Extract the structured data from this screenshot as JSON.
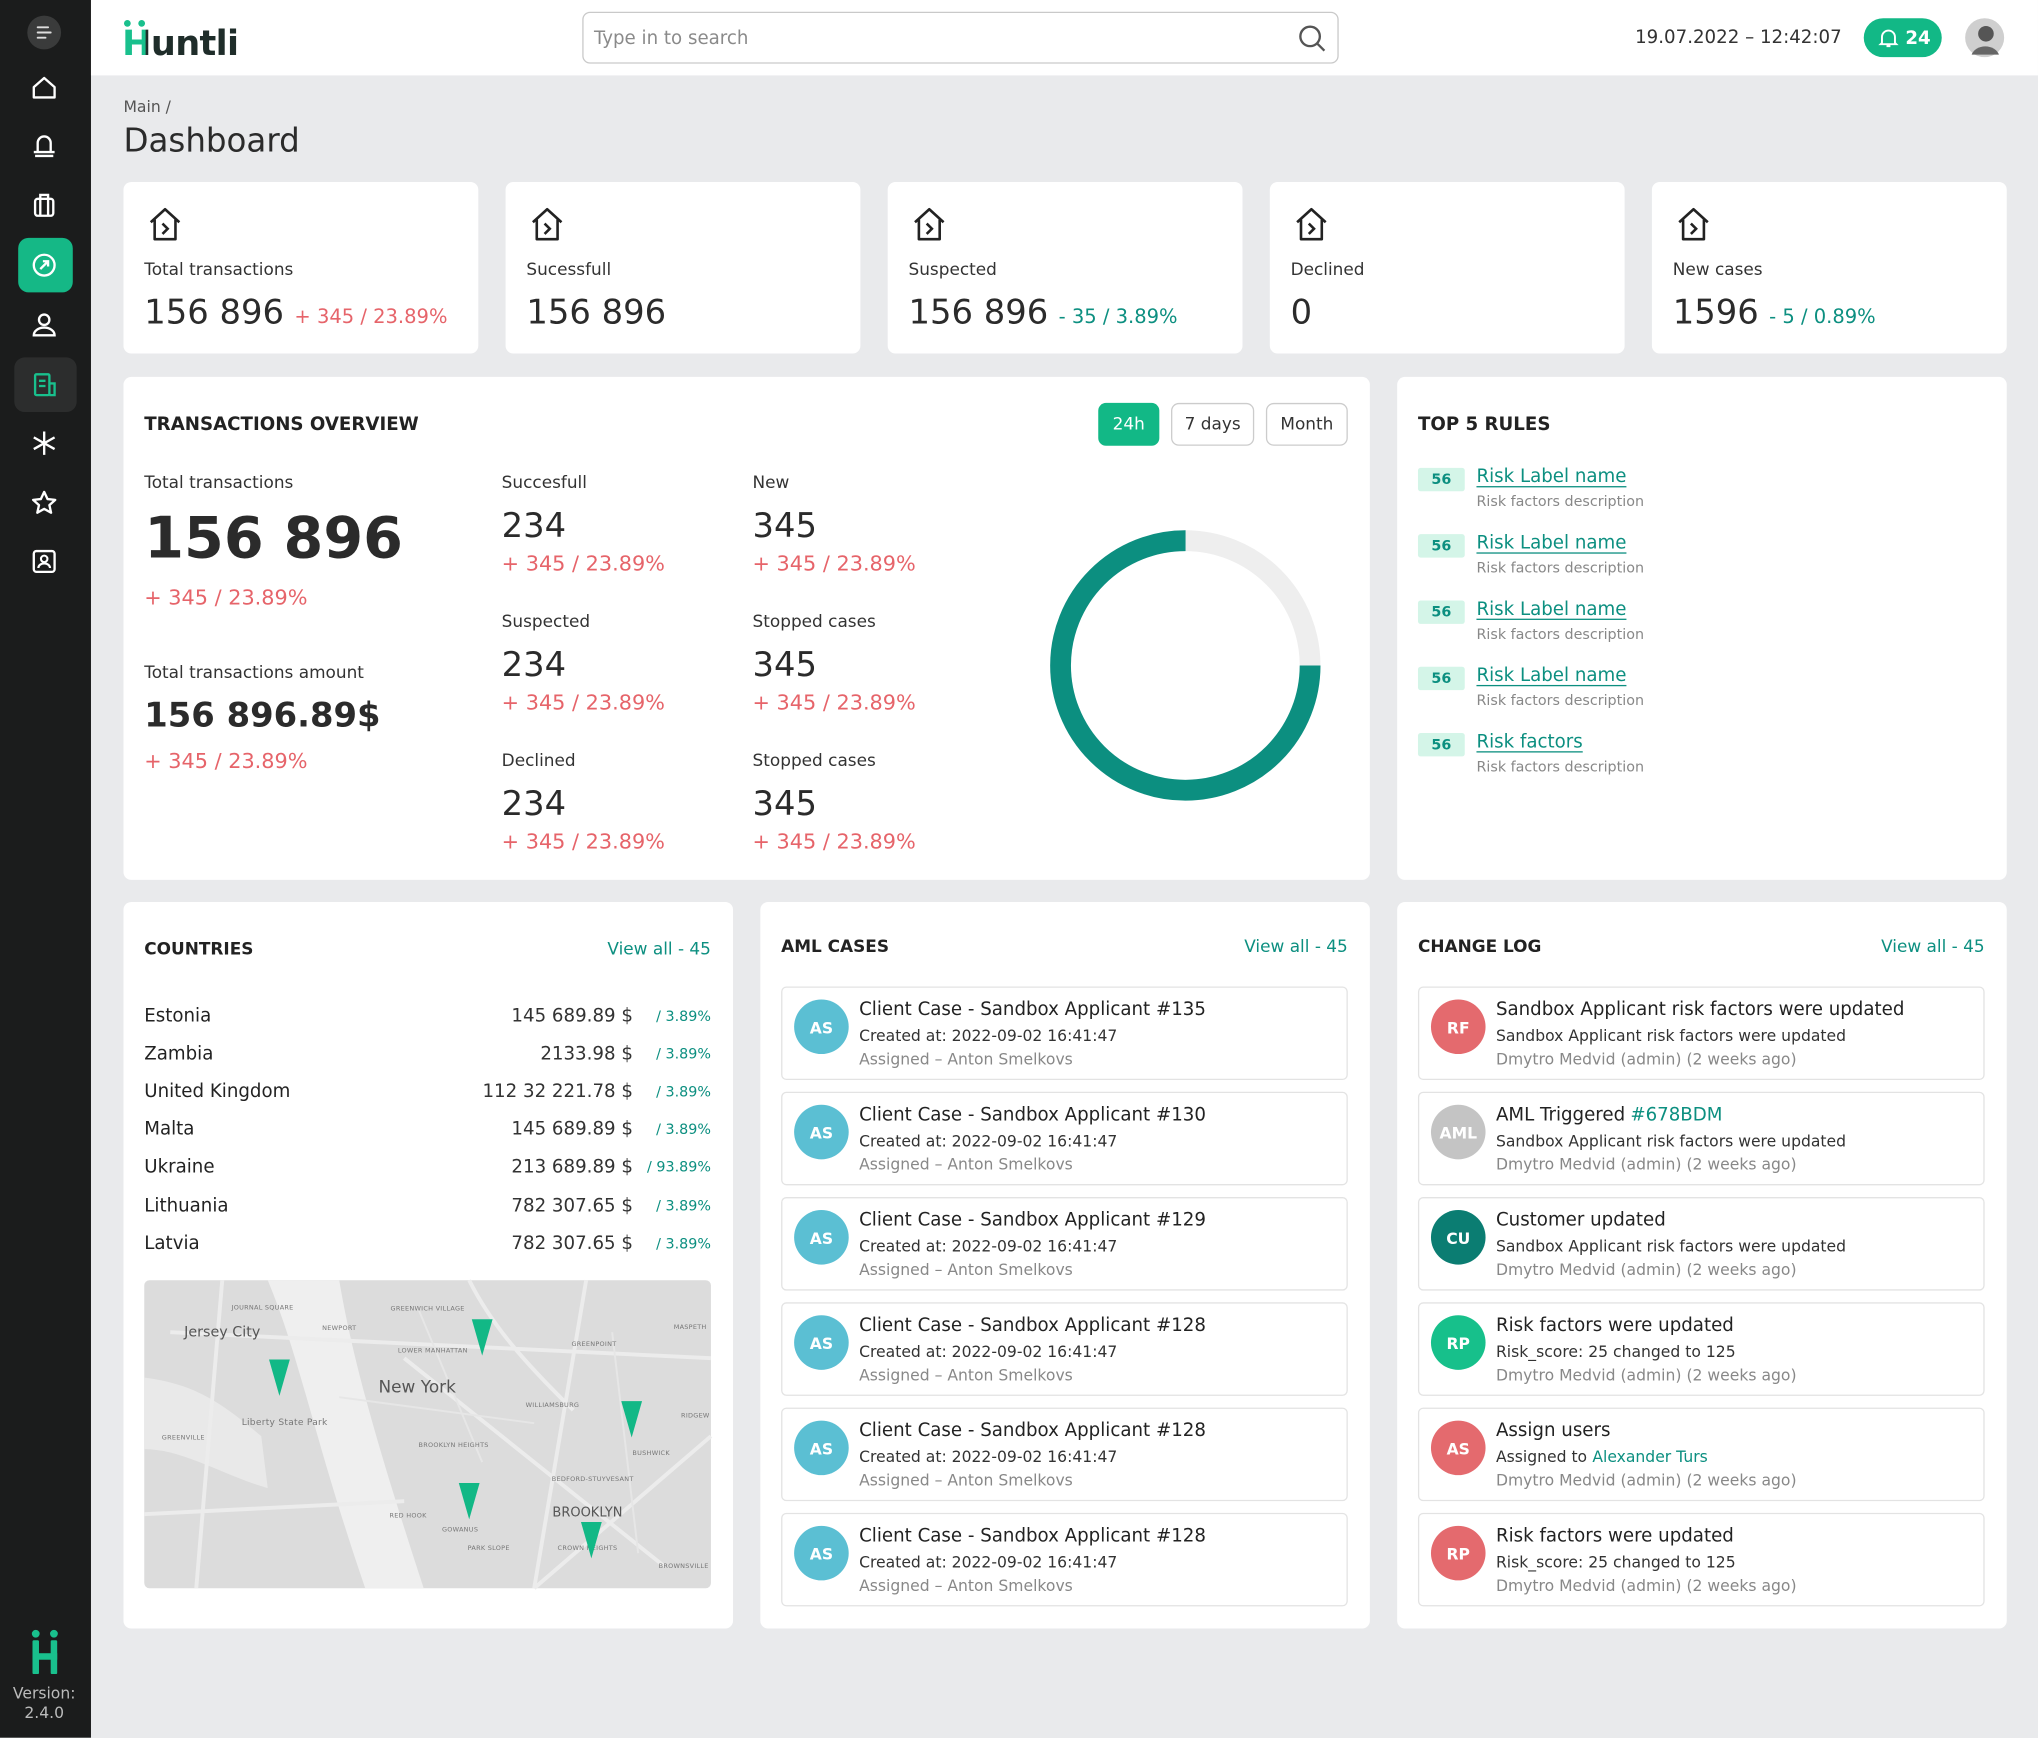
{
  "sidebar": {
    "version_label": "Version:",
    "version": "2.4.0"
  },
  "header": {
    "logo": "Huntli",
    "search_placeholder": "Type in to search",
    "datetime": "19.07.2022 – 12:42:07",
    "notifications": "24"
  },
  "breadcrumb": "Main /",
  "page_title": "Dashboard",
  "stats": [
    {
      "label": "Total transactions",
      "value": "156 896",
      "change": "+ 345 / 23.89%",
      "trend": "up"
    },
    {
      "label": "Sucessfull",
      "value": "156 896"
    },
    {
      "label": "Suspected",
      "value": "156 896",
      "change": "- 35 / 3.89%",
      "trend": "down"
    },
    {
      "label": "Declined",
      "value": "0"
    },
    {
      "label": "New cases",
      "value": "1596",
      "change": "- 5 / 0.89%",
      "trend": "down"
    }
  ],
  "overview": {
    "title": "TRANSACTIONS OVERVIEW",
    "tabs": [
      "24h",
      "7 days",
      "Month"
    ],
    "total": {
      "label": "Total transactions",
      "value": "156 896",
      "change": "+ 345 / 23.89%"
    },
    "amount": {
      "label": "Total transactions amount",
      "value": "156 896.89$",
      "change": "+ 345 / 23.89%"
    },
    "metrics": [
      {
        "label": "Succesfull",
        "value": "234",
        "change": "+ 345 / 23.89%"
      },
      {
        "label": "New",
        "value": "345",
        "change": "+ 345 / 23.89%"
      },
      {
        "label": "Suspected",
        "value": "234",
        "change": "+ 345 / 23.89%"
      },
      {
        "label": "Stopped cases",
        "value": "345",
        "change": "+ 345 / 23.89%"
      },
      {
        "label": "Declined",
        "value": "234",
        "change": "+ 345 / 23.89%"
      },
      {
        "label": "Stopped cases",
        "value": "345",
        "change": "+ 345 / 23.89%"
      }
    ]
  },
  "top_rules": {
    "title": "TOP 5 RULES",
    "rules": [
      {
        "score": "56",
        "name": "Risk Label name",
        "description": "Risk factors description"
      },
      {
        "score": "56",
        "name": "Risk Label name",
        "description": "Risk factors description"
      },
      {
        "score": "56",
        "name": "Risk Label name",
        "description": "Risk factors description"
      },
      {
        "score": "56",
        "name": "Risk Label name",
        "description": "Risk factors description"
      },
      {
        "score": "56",
        "name": "Risk factors",
        "description": "Risk factors description"
      }
    ]
  },
  "countries": {
    "title": "COUNTRIES",
    "view_all": "View all - 45",
    "rows": [
      {
        "name": "Estonia",
        "amount": "145 689.89 $",
        "change": "/ 3.89%"
      },
      {
        "name": "Zambia",
        "amount": "2133.98 $",
        "change": "/ 3.89%"
      },
      {
        "name": "United Kingdom",
        "amount": "112 32 221.78 $",
        "change": "/ 3.89%"
      },
      {
        "name": "Malta",
        "amount": "145 689.89 $",
        "change": "/ 3.89%"
      },
      {
        "name": "Ukraine",
        "amount": "213 689.89 $",
        "change": "/ 93.89%"
      },
      {
        "name": "Lithuania",
        "amount": "782 307.65 $",
        "change": "/ 3.89%"
      },
      {
        "name": "Latvia",
        "amount": "782 307.65 $",
        "change": "/ 3.89%"
      }
    ],
    "map_labels": [
      "JOURNAL SQUARE",
      "GREENWICH VILLAGE",
      "Jersey City",
      "NEWPORT",
      "LOWER MANHATTAN",
      "GREENPOINT",
      "MASPETH",
      "New York",
      "WILLIAMSBURG",
      "Liberty State Park",
      "RIDGEW",
      "GREENVILLE",
      "BROOKLYN HEIGHTS",
      "BUSHWICK",
      "BEDFORD-STUYVESANT",
      "RED HOOK",
      "BROOKLYN",
      "GOWANUS",
      "PARK SLOPE",
      "CROWN HEIGHTS",
      "BROWNSVILLE"
    ]
  },
  "aml_cases": {
    "title": "AML CASES",
    "view_all": "View all - 45",
    "cases": [
      {
        "initials": "AS",
        "title": "Client Case - Sandbox Applicant #135",
        "created": "Created at: 2022-09-02 16:41:47",
        "assigned": "Assigned – Anton Smelkovs"
      },
      {
        "initials": "AS",
        "title": "Client Case - Sandbox Applicant #130",
        "created": "Created at: 2022-09-02 16:41:47",
        "assigned": "Assigned – Anton Smelkovs"
      },
      {
        "initials": "AS",
        "title": "Client Case - Sandbox Applicant #129",
        "created": "Created at: 2022-09-02 16:41:47",
        "assigned": "Assigned – Anton Smelkovs"
      },
      {
        "initials": "AS",
        "title": "Client Case - Sandbox Applicant #128",
        "created": "Created at: 2022-09-02 16:41:47",
        "assigned": "Assigned – Anton Smelkovs"
      },
      {
        "initials": "AS",
        "title": "Client Case - Sandbox Applicant #128",
        "created": "Created at: 2022-09-02 16:41:47",
        "assigned": "Assigned – Anton Smelkovs"
      },
      {
        "initials": "AS",
        "title": "Client Case - Sandbox Applicant #128",
        "created": "Created at: 2022-09-02 16:41:47",
        "assigned": "Assigned – Anton Smelkovs"
      }
    ]
  },
  "change_log": {
    "title": "CHANGE LOG",
    "view_all": "View all - 45",
    "entries": [
      {
        "initials": "RF",
        "color": "#e46a6e",
        "title": "Sandbox Applicant risk factors were updated",
        "detail": "Sandbox Applicant risk factors were updated",
        "meta": "Dmytro Medvid (admin) (2 weeks ago)"
      },
      {
        "initials": "AML",
        "color": "#c4c4c4",
        "title": "AML Triggered",
        "title_link": "#678BDM",
        "detail": "Sandbox Applicant risk factors were updated",
        "meta": "Dmytro Medvid (admin) (2 weeks ago)"
      },
      {
        "initials": "CU",
        "color": "#0b7d72",
        "title": "Customer updated",
        "detail": "Sandbox Applicant risk factors were updated",
        "meta": "Dmytro Medvid (admin) (2 weeks ago)"
      },
      {
        "initials": "RP",
        "color": "#17c08b",
        "title": "Risk factors were updated",
        "detail": "Risk_score: 25 changed to 125",
        "meta": "Dmytro Medvid (admin) (2 weeks ago)"
      },
      {
        "initials": "AS",
        "color": "#e46a6e",
        "title": "Assign users",
        "detail": "Assigned to",
        "detail_link": "Alexander Turs",
        "meta": "Dmytro Medvid (admin) (2 weeks ago)"
      },
      {
        "initials": "RP",
        "color": "#e46a6e",
        "title": "Risk factors were updated",
        "detail": "Risk_score: 25 changed to 125",
        "meta": "Dmytro Medvid (admin) (2 weeks ago)"
      }
    ]
  }
}
